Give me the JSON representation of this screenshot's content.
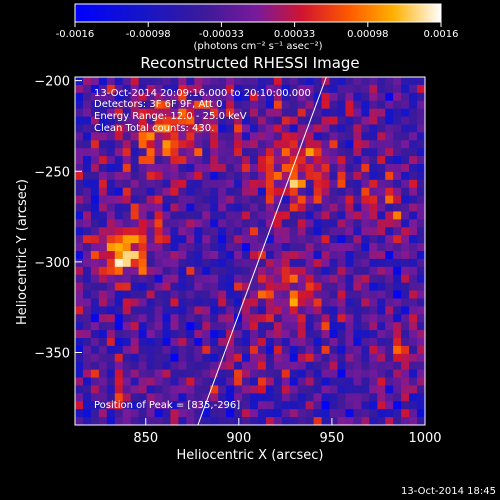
{
  "colorbar": {
    "ticks": [
      "-0.0016",
      "-0.00098",
      "-0.00033",
      "0.00033",
      "0.00098",
      "0.0016"
    ],
    "units_label": "(photons cm⁻² s⁻¹ asec⁻²)"
  },
  "chart_data": {
    "type": "heatmap",
    "title": "Reconstructed RHESSI Image",
    "xlabel": "Heliocentric X (arcsec)",
    "ylabel": "Heliocentric Y (arcsec)",
    "xlim": [
      812,
      1000
    ],
    "ylim": [
      -390,
      -198
    ],
    "x_ticks": [
      850,
      900,
      950,
      1000
    ],
    "y_ticks": [
      -200,
      -250,
      -300,
      -350
    ],
    "x_tick_labels": [
      "850",
      "900",
      "950",
      "1000"
    ],
    "y_tick_labels": [
      "−200",
      "−250",
      "−300",
      "−350"
    ],
    "color_range": [
      -0.0016,
      0.0016
    ],
    "limb_line": [
      [
        878,
        -390
      ],
      [
        947,
        -198
      ]
    ],
    "annotations": {
      "time": "13-Oct-2014 20:09:16.000 to 20:10:00.000",
      "detectors": "Detectors: 3F 6F 9F, Att 0",
      "energy": "Energy Range: 12.0 - 25.0 keV",
      "method": "Clean    Total counts: 430.",
      "peak": "Position of Peak = [835,-296]"
    }
  },
  "footer": {
    "timestamp": "13-Oct-2014 18:45"
  }
}
